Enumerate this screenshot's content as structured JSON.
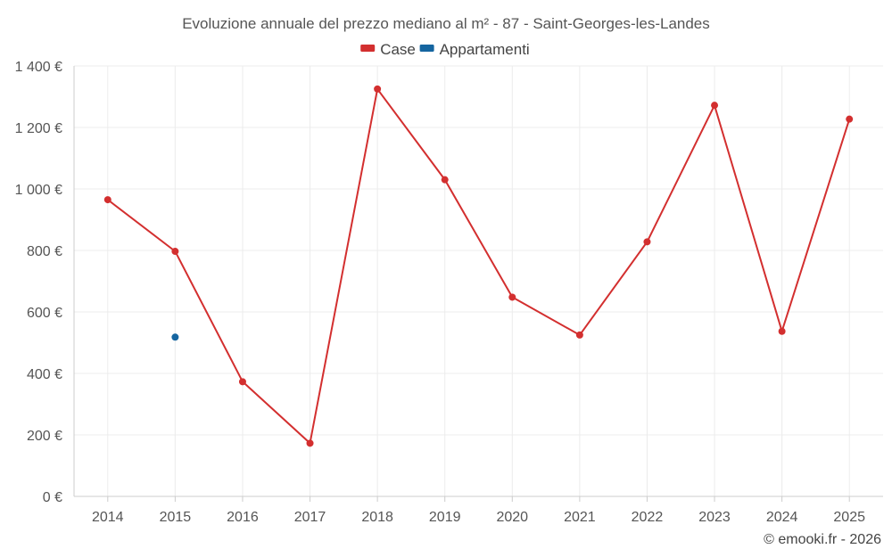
{
  "chart_data": {
    "type": "line",
    "title": "Evoluzione annuale del prezzo mediano al m² - 87 - Saint-Georges-les-Landes",
    "categories": [
      "2014",
      "2015",
      "2016",
      "2017",
      "2018",
      "2019",
      "2020",
      "2021",
      "2022",
      "2023",
      "2024",
      "2025"
    ],
    "y_ticks": [
      "0 €",
      "200 €",
      "400 €",
      "600 €",
      "800 €",
      "1 000 €",
      "1 200 €",
      "1 400 €"
    ],
    "ylim": [
      0,
      1400
    ],
    "grid": true,
    "legend_position": "top-center",
    "series": [
      {
        "name": "Case",
        "color": "#d32f2f",
        "values": [
          965,
          797,
          373,
          173,
          1325,
          1030,
          648,
          525,
          828,
          1272,
          537,
          1227
        ]
      },
      {
        "name": "Appartamenti",
        "color": "#1565a0",
        "values": [
          null,
          518,
          null,
          null,
          null,
          null,
          null,
          null,
          null,
          null,
          null,
          null
        ]
      }
    ]
  },
  "credit": "© emooki.fr - 2026"
}
